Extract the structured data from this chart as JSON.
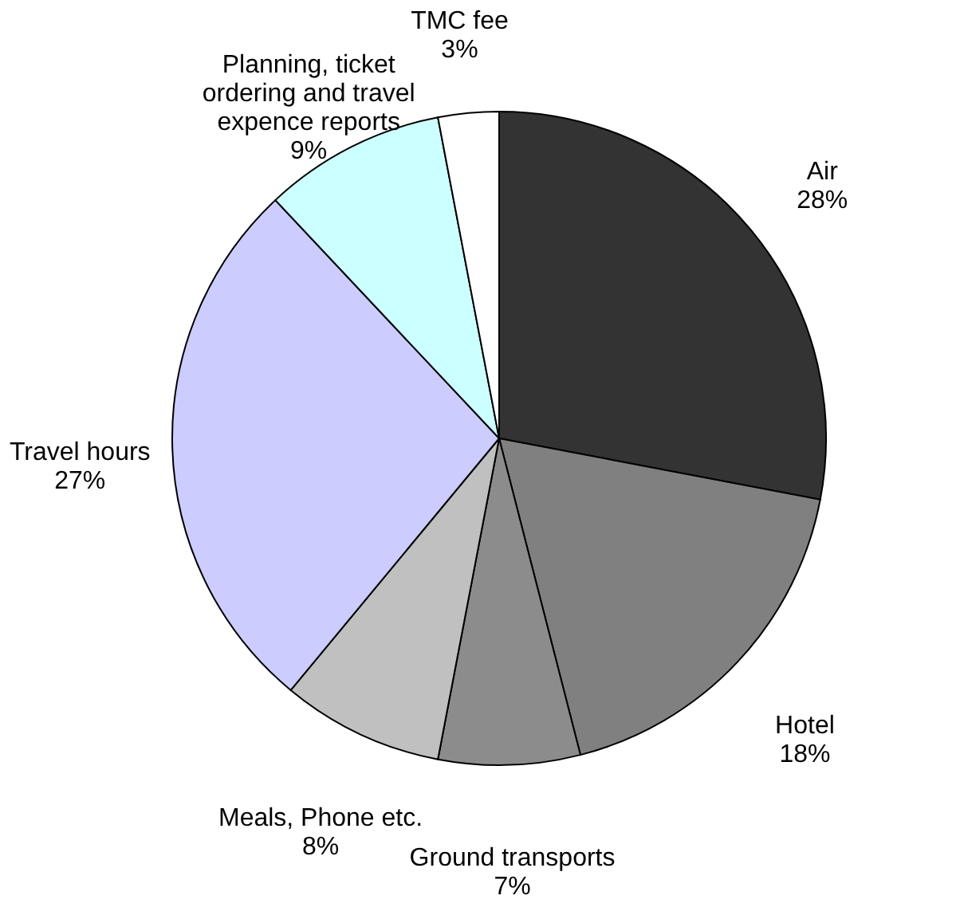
{
  "chart_data": {
    "type": "pie",
    "categories": [
      "Air",
      "Hotel",
      "Ground transports",
      "Meals, Phone etc.",
      "Travel hours",
      "Planning, ticket ordering and travel expence reports",
      "TMC fee"
    ],
    "values": [
      28,
      18,
      7,
      8,
      27,
      9,
      3
    ],
    "colors": [
      "#333333",
      "#808080",
      "#8c8c8c",
      "#c0c0c0",
      "#ccccff",
      "#ccffff",
      "#ffffff"
    ],
    "value_labels": [
      "28%",
      "18%",
      "7%",
      "8%",
      "27%",
      "9%",
      "3%"
    ],
    "legend": false
  }
}
